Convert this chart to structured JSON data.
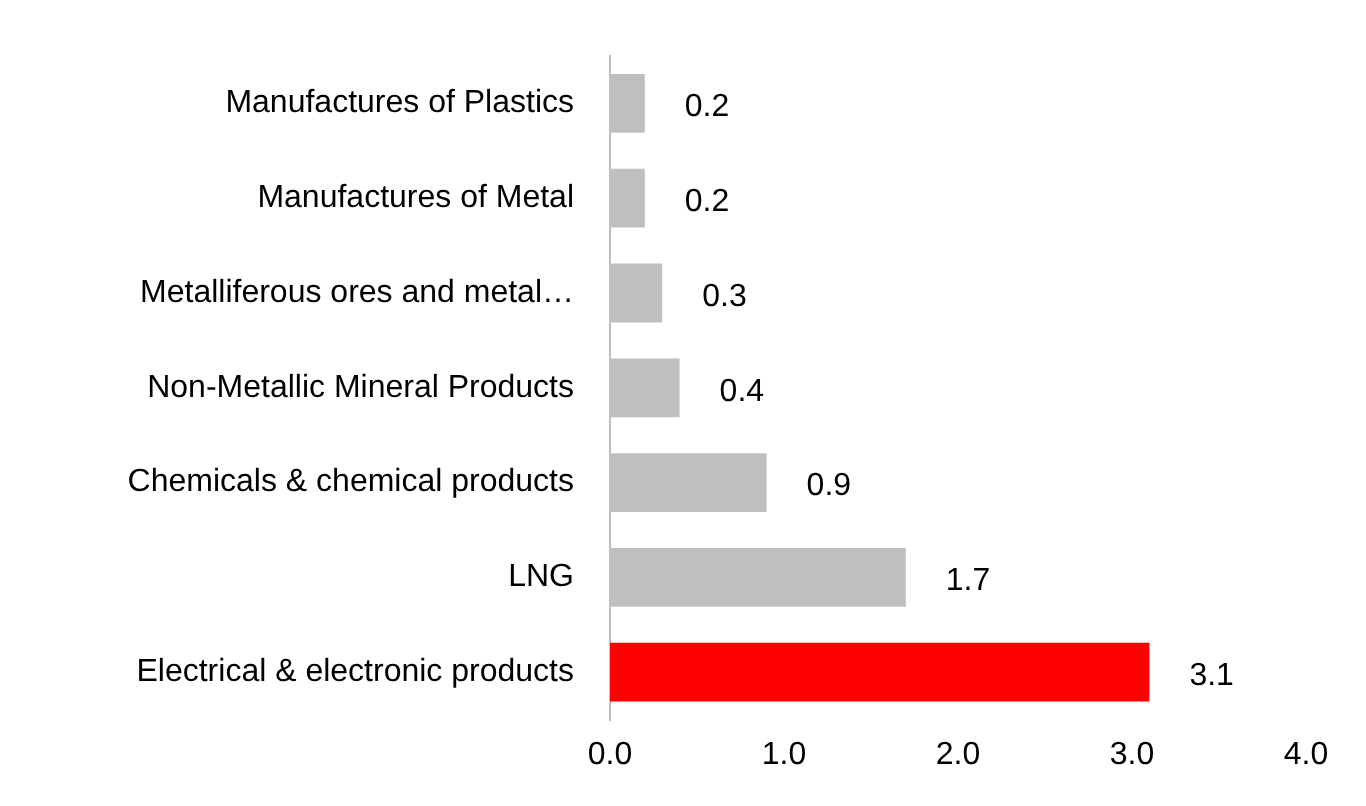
{
  "chart_data": {
    "type": "bar",
    "orientation": "horizontal",
    "categories": [
      "Manufactures of Plastics",
      "Manufactures of Metal",
      "Metalliferous ores and metal…",
      "Non-Metallic Mineral Products",
      "Chemicals & chemical products",
      "LNG",
      "Electrical & electronic products"
    ],
    "values": [
      0.2,
      0.2,
      0.3,
      0.4,
      0.9,
      1.7,
      3.1
    ],
    "colors": [
      "#bfbfbf",
      "#bfbfbf",
      "#bfbfbf",
      "#bfbfbf",
      "#bfbfbf",
      "#bfbfbf",
      "#ff0000"
    ],
    "xlim": [
      0,
      4
    ],
    "xticks": [
      {
        "value": 0,
        "label": "0.0"
      },
      {
        "value": 1,
        "label": "1.0"
      },
      {
        "value": 2,
        "label": "2.0"
      },
      {
        "value": 3,
        "label": "3.0"
      },
      {
        "value": 4,
        "label": "4.0"
      }
    ],
    "data_labels": true,
    "grid": false,
    "legend": false
  }
}
